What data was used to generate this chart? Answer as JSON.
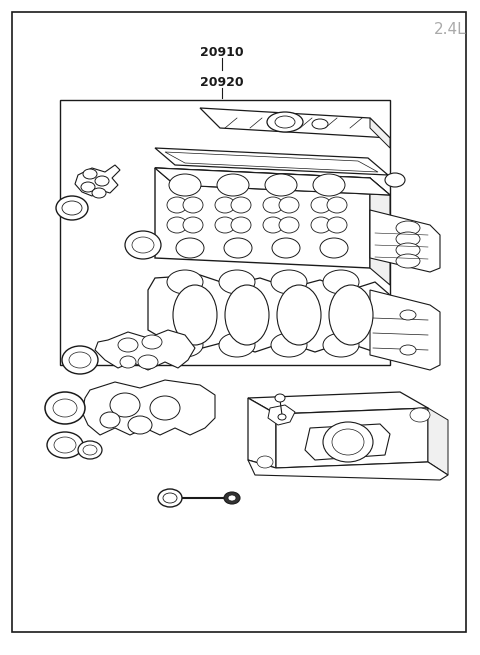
{
  "engine_size_label": "2.4L",
  "part_number_1": "20910",
  "part_number_2": "20920",
  "background_color": "#ffffff",
  "line_color": "#1a1a1a",
  "engine_size_color": "#aaaaaa",
  "figure_width": 4.8,
  "figure_height": 6.55,
  "dpi": 100
}
